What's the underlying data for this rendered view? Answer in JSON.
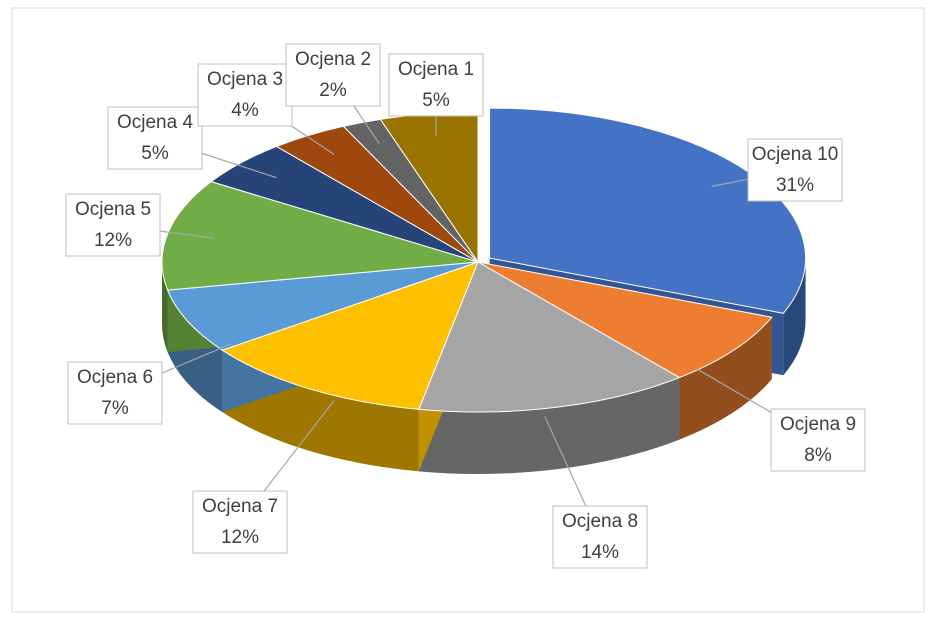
{
  "chart_data": {
    "type": "pie",
    "categories": [
      "Ocjena 10",
      "Ocjena 9",
      "Ocjena 8",
      "Ocjena 7",
      "Ocjena 6",
      "Ocjena 5",
      "Ocjena 4",
      "Ocjena 3",
      "Ocjena 2",
      "Ocjena 1"
    ],
    "values": [
      31,
      8,
      14,
      12,
      7,
      12,
      5,
      4,
      2,
      5
    ],
    "value_labels": [
      "31%",
      "8%",
      "14%",
      "12%",
      "7%",
      "12%",
      "5%",
      "4%",
      "2%",
      "5%"
    ],
    "colors": [
      "#4472c4",
      "#ed7d31",
      "#a5a5a5",
      "#ffc000",
      "#5b9bd5",
      "#70ad47",
      "#264478",
      "#9e480e",
      "#636363",
      "#997300"
    ]
  }
}
